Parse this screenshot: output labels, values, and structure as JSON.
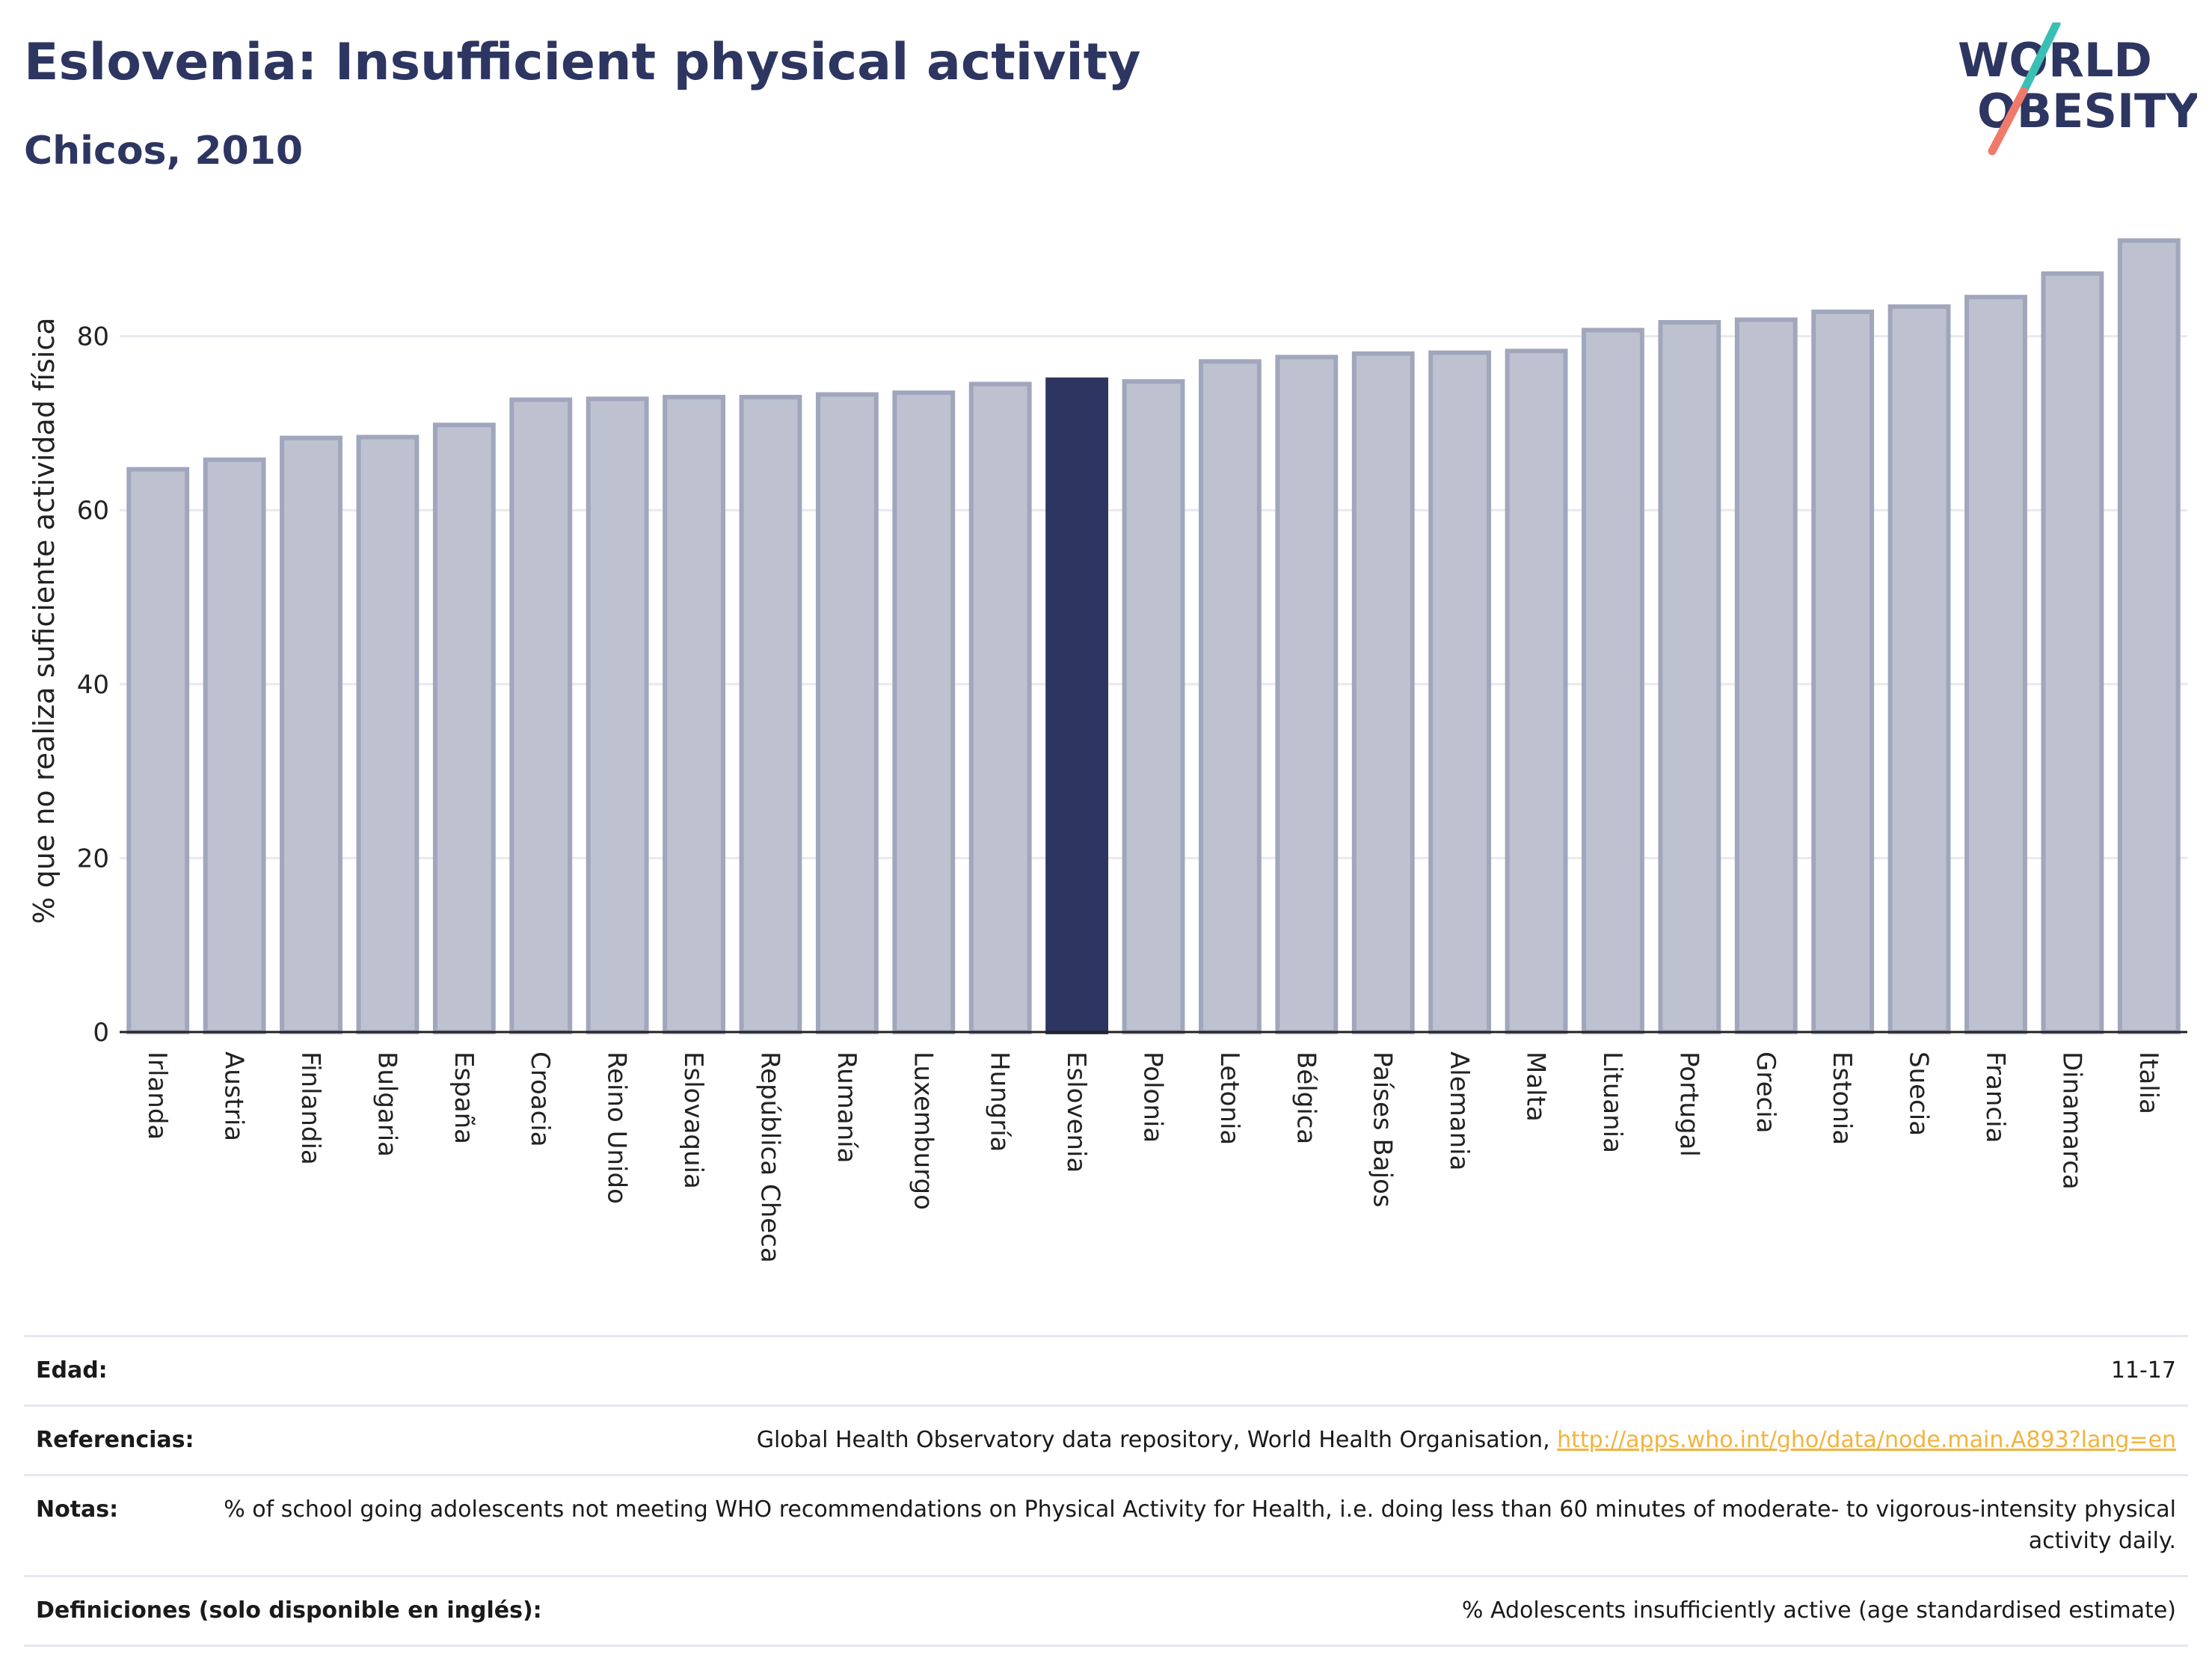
{
  "header": {
    "title": "Eslovenia: Insufficient physical activity",
    "subtitle": "Chicos, 2010"
  },
  "logo": {
    "line1": "WORLD",
    "line2": "OBESITY",
    "colors": {
      "text": "#2d3561",
      "slash_teal": "#3bbfb5",
      "slash_coral": "#ef7a6b"
    }
  },
  "chart_data": {
    "type": "bar",
    "ylabel": "% que no realiza suficiente actividad física",
    "xlabel": "",
    "ylim": [
      0,
      92
    ],
    "yticks": [
      0,
      20,
      40,
      60,
      80
    ],
    "grid": true,
    "highlight": "Eslovenia",
    "colors": {
      "bar": "#bec2d0",
      "bar_edge": "#a0a6bc",
      "highlight": "#2d3561",
      "grid": "#e8e8ee"
    },
    "categories": [
      "Irlanda",
      "Austria",
      "Finlandia",
      "Bulgaria",
      "España",
      "Croacia",
      "Reino Unido",
      "Eslovaquia",
      "República Checa",
      "Rumanía",
      "Luxemburgo",
      "Hungría",
      "Eslovenia",
      "Polonia",
      "Letonia",
      "Bélgica",
      "Países Bajos",
      "Alemania",
      "Malta",
      "Lituania",
      "Portugal",
      "Grecia",
      "Estonia",
      "Suecia",
      "Francia",
      "Dinamarca",
      "Italia"
    ],
    "values": [
      64.7,
      65.8,
      68.3,
      68.4,
      69.8,
      72.7,
      72.8,
      73.0,
      73.0,
      73.3,
      73.5,
      74.5,
      75.0,
      74.8,
      77.1,
      77.6,
      78.0,
      78.1,
      78.3,
      80.7,
      81.6,
      81.9,
      82.8,
      83.4,
      84.5,
      87.2,
      91.0
    ]
  },
  "meta": {
    "rows": [
      {
        "label": "Edad:",
        "value": "11-17"
      },
      {
        "label": "Referencias:",
        "value": "Global Health Observatory data repository, World Health Organisation, ",
        "link": "http://apps.who.int/gho/data/node.main.A893?lang=en"
      },
      {
        "label": "Notas:",
        "value": "% of school going adolescents not meeting WHO recommendations on Physical Activity for Health, i.e. doing less than 60 minutes of moderate- to vigorous-intensity physical activity daily."
      },
      {
        "label": "Definiciones (solo disponible en inglés):",
        "value": "% Adolescents insufficiently active (age standardised estimate)"
      }
    ]
  }
}
